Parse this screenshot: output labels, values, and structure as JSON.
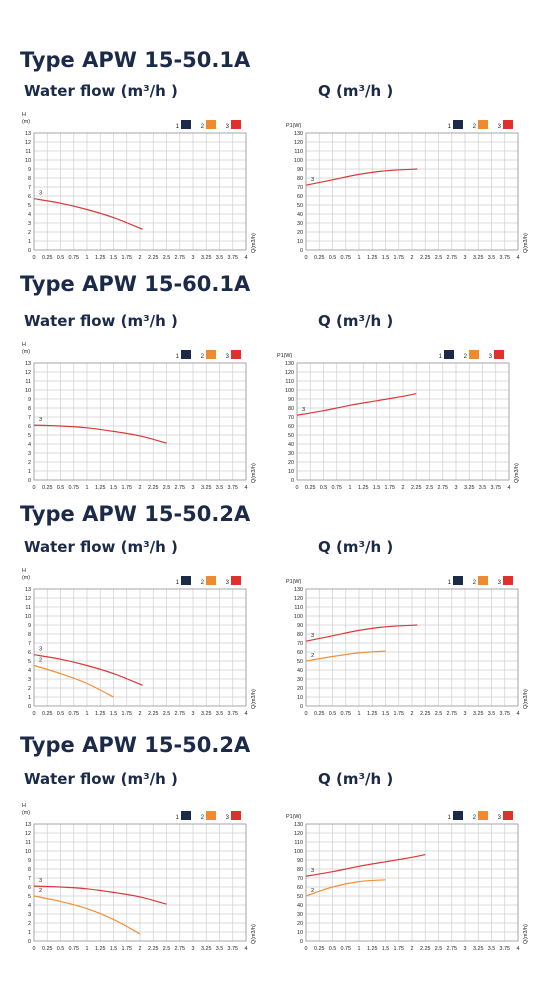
{
  "headings": {
    "left": "Water flow (m³/h )",
    "right": "Q (m³/h )"
  },
  "colors": {
    "series_1": "#1c2a4a",
    "series_2": "#f08a30",
    "series_3": "#e0302c",
    "curve_2": "#f0903a",
    "curve_3": "#d83a3a",
    "grid": "#cfcfcf"
  },
  "sections": [
    {
      "title": "Type APW 15-50.1A",
      "chart_data": [
        {
          "type": "line",
          "ylabel": "H",
          "yunit": "(m)",
          "xlabel": "Q(m3/h)",
          "legend": [
            "1",
            "2",
            "3"
          ],
          "legend_position": "top-right",
          "xlim": [
            0,
            4
          ],
          "ylim": [
            0,
            13
          ],
          "xticks": [
            "0",
            "0.25",
            "0.5",
            "0.75",
            "1",
            "1.25",
            "1.5",
            "1.75",
            "2",
            "2.25",
            "2.5",
            "2.75",
            "3",
            "3.25",
            "3.5",
            "3.75",
            "4"
          ],
          "yticks": [
            "0",
            "1",
            "2",
            "3",
            "4",
            "5",
            "6",
            "7",
            "8",
            "9",
            "10",
            "11",
            "12",
            "13"
          ],
          "grid": true,
          "series": [
            {
              "name": "3",
              "x": [
                0,
                0.5,
                1,
                1.5,
                2.05
              ],
              "y": [
                5.7,
                5.2,
                4.5,
                3.6,
                2.3
              ]
            }
          ]
        },
        {
          "type": "line",
          "ylabel": "P1(W)",
          "yunit": "",
          "xlabel": "Q(m3/h)",
          "legend": [
            "1",
            "2",
            "3"
          ],
          "legend_position": "top-right",
          "xlim": [
            0,
            4
          ],
          "ylim": [
            0,
            130
          ],
          "xticks": [
            "0",
            "0.25",
            "0.5",
            "0.75",
            "1",
            "1.25",
            "1.5",
            "1.75",
            "2",
            "2.25",
            "2.5",
            "2.75",
            "3",
            "3.25",
            "3.5",
            "3.75",
            "4"
          ],
          "yticks": [
            "0",
            "10",
            "20",
            "30",
            "40",
            "50",
            "60",
            "70",
            "80",
            "90",
            "100",
            "110",
            "120",
            "130"
          ],
          "grid": true,
          "series": [
            {
              "name": "3",
              "x": [
                0,
                0.5,
                1,
                1.5,
                2.1
              ],
              "y": [
                72,
                78,
                84,
                88,
                90
              ]
            }
          ]
        }
      ]
    },
    {
      "title": "Type APW 15-60.1A",
      "chart_data": [
        {
          "type": "line",
          "ylabel": "H",
          "yunit": "(m)",
          "xlabel": "Q(m3/h)",
          "legend": [
            "1",
            "2",
            "3"
          ],
          "legend_position": "top-right",
          "xlim": [
            0,
            4
          ],
          "ylim": [
            0,
            13
          ],
          "xticks": [
            "0",
            "0.25",
            "0.5",
            "0.75",
            "1",
            "1.25",
            "1.5",
            "1.75",
            "2",
            "2.25",
            "2.5",
            "2.75",
            "3",
            "3.25",
            "3.5",
            "3.75",
            "4"
          ],
          "yticks": [
            "0",
            "1",
            "2",
            "3",
            "4",
            "5",
            "6",
            "7",
            "8",
            "9",
            "10",
            "11",
            "12",
            "13"
          ],
          "grid": true,
          "series": [
            {
              "name": "3",
              "x": [
                0,
                0.5,
                1,
                1.5,
                2,
                2.5
              ],
              "y": [
                6.1,
                6.0,
                5.8,
                5.4,
                4.9,
                4.1
              ]
            }
          ]
        },
        {
          "type": "line",
          "ylabel": "P1(W)",
          "yunit": "",
          "xlabel": "Q(m3/h)",
          "legend": [
            "1",
            "2",
            "3"
          ],
          "legend_position": "top-right",
          "xlim": [
            0,
            4
          ],
          "ylim": [
            0,
            130
          ],
          "xticks": [
            "0",
            "0.25",
            "0.5",
            "0.75",
            "1",
            "1.25",
            "1.5",
            "1.75",
            "2",
            "2.25",
            "2.5",
            "2.75",
            "3",
            "3.25",
            "3.5",
            "3.75",
            "4"
          ],
          "yticks": [
            "0",
            "10",
            "20",
            "30",
            "40",
            "50",
            "60",
            "70",
            "80",
            "90",
            "100",
            "110",
            "120",
            "130"
          ],
          "grid": true,
          "series": [
            {
              "name": "3",
              "x": [
                0,
                0.5,
                1,
                1.5,
                2,
                2.25
              ],
              "y": [
                72,
                77,
                83,
                88,
                93,
                96
              ]
            }
          ]
        }
      ]
    },
    {
      "title": "Type APW 15-50.2A",
      "chart_data": [
        {
          "type": "line",
          "ylabel": "H",
          "yunit": "(m)",
          "xlabel": "Q(m3/h)",
          "legend": [
            "1",
            "2",
            "3"
          ],
          "legend_position": "top-right",
          "xlim": [
            0,
            4
          ],
          "ylim": [
            0,
            13
          ],
          "xticks": [
            "0",
            "0.25",
            "0.5",
            "0.75",
            "1",
            "1.25",
            "1.5",
            "1.75",
            "2",
            "2.25",
            "2.5",
            "2.75",
            "3",
            "3.25",
            "3.5",
            "3.75",
            "4"
          ],
          "yticks": [
            "0",
            "1",
            "2",
            "3",
            "4",
            "5",
            "6",
            "7",
            "8",
            "9",
            "10",
            "11",
            "12",
            "13"
          ],
          "grid": true,
          "series": [
            {
              "name": "3",
              "x": [
                0,
                0.5,
                1,
                1.5,
                2.05
              ],
              "y": [
                5.7,
                5.2,
                4.5,
                3.6,
                2.3
              ]
            },
            {
              "name": "2",
              "x": [
                0,
                0.5,
                1,
                1.5
              ],
              "y": [
                4.5,
                3.6,
                2.5,
                1.0
              ]
            }
          ]
        },
        {
          "type": "line",
          "ylabel": "P1(W)",
          "yunit": "",
          "xlabel": "Q(m3/h)",
          "legend": [
            "1",
            "2",
            "3"
          ],
          "legend_position": "top-right",
          "xlim": [
            0,
            4
          ],
          "ylim": [
            0,
            130
          ],
          "xticks": [
            "0",
            "0.25",
            "0.5",
            "0.75",
            "1",
            "1.25",
            "1.5",
            "1.75",
            "2",
            "2.25",
            "2.5",
            "2.75",
            "3",
            "3.25",
            "3.5",
            "3.75",
            "4"
          ],
          "yticks": [
            "0",
            "10",
            "20",
            "30",
            "40",
            "50",
            "60",
            "70",
            "80",
            "90",
            "100",
            "110",
            "120",
            "130"
          ],
          "grid": true,
          "series": [
            {
              "name": "3",
              "x": [
                0,
                0.5,
                1,
                1.5,
                2.1
              ],
              "y": [
                72,
                78,
                84,
                88,
                90
              ]
            },
            {
              "name": "2",
              "x": [
                0,
                0.5,
                1,
                1.5
              ],
              "y": [
                50,
                55,
                59,
                61
              ]
            }
          ]
        }
      ]
    },
    {
      "title": "Type APW 15-50.2A",
      "chart_data": [
        {
          "type": "line",
          "ylabel": "H",
          "yunit": "(m)",
          "xlabel": "Q(m3/h)",
          "legend": [
            "1",
            "2",
            "3"
          ],
          "legend_position": "top-right",
          "xlim": [
            0,
            4
          ],
          "ylim": [
            0,
            13
          ],
          "xticks": [
            "0",
            "0.25",
            "0.5",
            "0.75",
            "1",
            "1.25",
            "1.5",
            "1.75",
            "2",
            "2.25",
            "2.5",
            "2.75",
            "3",
            "3.25",
            "3.5",
            "3.75",
            "4"
          ],
          "yticks": [
            "0",
            "1",
            "2",
            "3",
            "4",
            "5",
            "6",
            "7",
            "8",
            "9",
            "10",
            "11",
            "12",
            "13"
          ],
          "grid": true,
          "series": [
            {
              "name": "3",
              "x": [
                0,
                0.5,
                1,
                1.5,
                2,
                2.5
              ],
              "y": [
                6.1,
                6.0,
                5.8,
                5.4,
                4.9,
                4.1
              ]
            },
            {
              "name": "2",
              "x": [
                0,
                0.5,
                1,
                1.5,
                2
              ],
              "y": [
                5.0,
                4.4,
                3.6,
                2.4,
                0.8
              ]
            }
          ]
        },
        {
          "type": "line",
          "ylabel": "P1(W)",
          "yunit": "",
          "xlabel": "Q(m3/h)",
          "legend": [
            "1",
            "2",
            "3"
          ],
          "legend_position": "top-right",
          "xlim": [
            0,
            4
          ],
          "ylim": [
            0,
            130
          ],
          "xticks": [
            "0",
            "0.25",
            "0.5",
            "0.75",
            "1",
            "1.25",
            "1.5",
            "1.75",
            "2",
            "2.25",
            "2.5",
            "2.75",
            "3",
            "3.25",
            "3.5",
            "3.75",
            "4"
          ],
          "yticks": [
            "0",
            "10",
            "20",
            "30",
            "40",
            "50",
            "60",
            "70",
            "80",
            "90",
            "100",
            "110",
            "120",
            "130"
          ],
          "grid": true,
          "series": [
            {
              "name": "3",
              "x": [
                0,
                0.5,
                1,
                1.5,
                2,
                2.25
              ],
              "y": [
                72,
                77,
                83,
                88,
                93,
                96
              ]
            },
            {
              "name": "2",
              "x": [
                0,
                0.5,
                1,
                1.5
              ],
              "y": [
                50,
                60,
                66,
                68
              ]
            }
          ]
        }
      ]
    }
  ]
}
